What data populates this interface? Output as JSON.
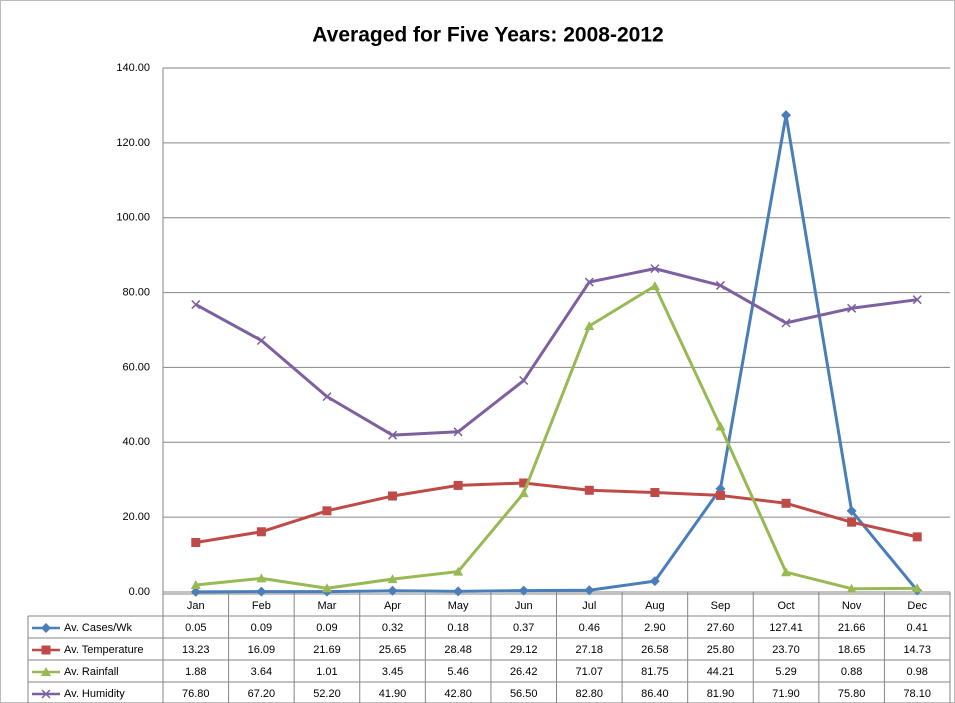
{
  "chart_data": {
    "type": "line",
    "title": "Averaged for Five Years: 2008-2012",
    "categories": [
      "Jan",
      "Feb",
      "Mar",
      "Apr",
      "May",
      "Jun",
      "Jul",
      "Aug",
      "Sep",
      "Oct",
      "Nov",
      "Dec"
    ],
    "ylim": [
      0,
      140
    ],
    "yticks": [
      {
        "value": 0,
        "label": "0.00"
      },
      {
        "value": 20,
        "label": "20.00"
      },
      {
        "value": 40,
        "label": "40.00"
      },
      {
        "value": 60,
        "label": "60.00"
      },
      {
        "value": 80,
        "label": "80.00"
      },
      {
        "value": 100,
        "label": "100.00"
      },
      {
        "value": 120,
        "label": "120.00"
      },
      {
        "value": 140,
        "label": "140.00"
      }
    ],
    "grid": true,
    "series": [
      {
        "name": "Av. Cases/Wk",
        "color": "#4a7ebb",
        "marker": "diamond",
        "values": [
          0.05,
          0.09,
          0.09,
          0.32,
          0.18,
          0.37,
          0.46,
          2.9,
          27.6,
          127.41,
          21.66,
          0.41
        ],
        "value_labels": [
          "0.05",
          "0.09",
          "0.09",
          "0.32",
          "0.18",
          "0.37",
          "0.46",
          "2.90",
          "27.60",
          "127.41",
          "21.66",
          "0.41"
        ]
      },
      {
        "name": "Av. Temperature",
        "color": "#be4b48",
        "marker": "square",
        "values": [
          13.23,
          16.09,
          21.69,
          25.65,
          28.48,
          29.12,
          27.18,
          26.58,
          25.8,
          23.7,
          18.65,
          14.73
        ],
        "value_labels": [
          "13.23",
          "16.09",
          "21.69",
          "25.65",
          "28.48",
          "29.12",
          "27.18",
          "26.58",
          "25.80",
          "23.70",
          "18.65",
          "14.73"
        ]
      },
      {
        "name": "Av. Rainfall",
        "color": "#98b954",
        "marker": "triangle",
        "values": [
          1.88,
          3.64,
          1.01,
          3.45,
          5.46,
          26.42,
          71.07,
          81.75,
          44.21,
          5.29,
          0.88,
          0.98
        ],
        "value_labels": [
          "1.88",
          "3.64",
          "1.01",
          "3.45",
          "5.46",
          "26.42",
          "71.07",
          "81.75",
          "44.21",
          "5.29",
          "0.88",
          "0.98"
        ]
      },
      {
        "name": "Av. Humidity",
        "color": "#7d60a0",
        "marker": "x",
        "values": [
          76.8,
          67.2,
          52.2,
          41.9,
          42.8,
          56.5,
          82.8,
          86.4,
          81.9,
          71.9,
          75.8,
          78.1
        ],
        "value_labels": [
          "76.80",
          "67.20",
          "52.20",
          "41.90",
          "42.80",
          "56.50",
          "82.80",
          "86.40",
          "81.90",
          "71.90",
          "75.80",
          "78.10"
        ]
      }
    ]
  }
}
